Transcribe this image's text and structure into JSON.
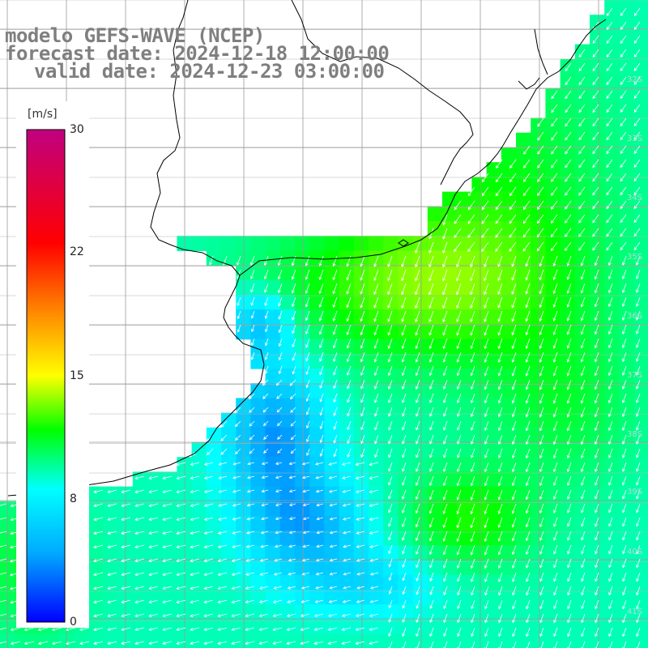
{
  "title": {
    "line1": "modelo GEFS-WAVE (NCEP)",
    "line2": "forecast date: 2024-12-18 12:00:00",
    "line3": "valid date: 2024-12-23 03:00:00"
  },
  "colorbar": {
    "unit": "[m/s]",
    "ticks": [
      "30",
      "22",
      "15",
      "8",
      "0"
    ],
    "tick_values": [
      30,
      22,
      15,
      8,
      0
    ],
    "min": 0,
    "max": 30,
    "colors": [
      "#0000ff",
      "#00aaff",
      "#00ffff",
      "#00ff00",
      "#ffff00",
      "#ff8800",
      "#ff0000",
      "#c00080"
    ]
  },
  "lat_labels": [
    "32S",
    "33S",
    "34S",
    "35S",
    "36S",
    "37S",
    "38S",
    "39S",
    "40S",
    "41S"
  ],
  "colors": {
    "land": "#ffffff",
    "grid": "#9a9a9a",
    "coast": "#000000",
    "arrow": "#ffffff",
    "title": "#7f7f7f"
  }
}
